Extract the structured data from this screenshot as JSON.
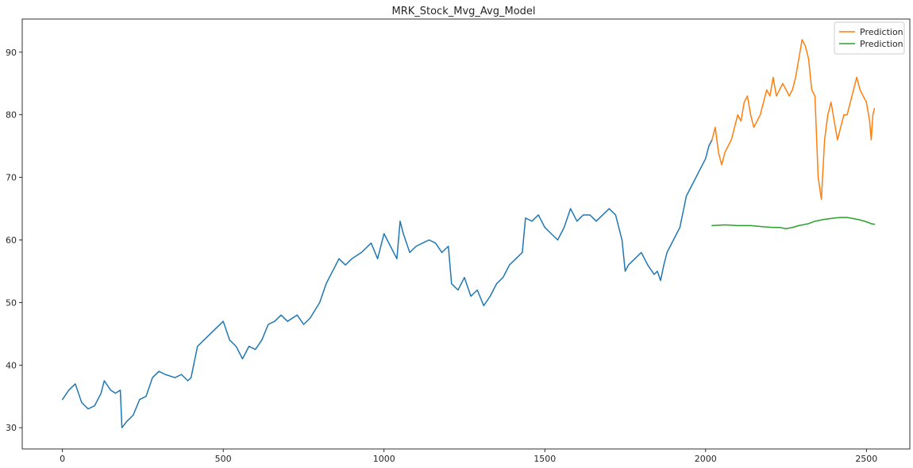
{
  "chart_data": {
    "type": "line",
    "title": "MRK_Stock_Mvg_Avg_Model",
    "xlabel": "",
    "ylabel": "",
    "xlim": [
      -125,
      2635
    ],
    "ylim": [
      26.6,
      95.3
    ],
    "x_ticks": [
      0,
      500,
      1000,
      1500,
      2000,
      2500
    ],
    "y_ticks": [
      30,
      40,
      50,
      60,
      70,
      80,
      90
    ],
    "grid": false,
    "legend_position": "top-right",
    "series": [
      {
        "color": "#1f77b4",
        "points": [
          [
            0,
            34.5
          ],
          [
            20,
            36
          ],
          [
            40,
            37
          ],
          [
            60,
            34
          ],
          [
            80,
            33
          ],
          [
            100,
            33.5
          ],
          [
            120,
            35.5
          ],
          [
            130,
            37.5
          ],
          [
            150,
            36
          ],
          [
            165,
            35.5
          ],
          [
            180,
            36
          ],
          [
            185,
            30
          ],
          [
            200,
            31
          ],
          [
            220,
            32
          ],
          [
            240,
            34.5
          ],
          [
            260,
            35
          ],
          [
            280,
            38
          ],
          [
            300,
            39
          ],
          [
            320,
            38.5
          ],
          [
            350,
            38
          ],
          [
            370,
            38.5
          ],
          [
            390,
            37.5
          ],
          [
            400,
            38
          ],
          [
            420,
            43
          ],
          [
            440,
            44
          ],
          [
            460,
            45
          ],
          [
            480,
            46
          ],
          [
            500,
            47
          ],
          [
            520,
            44
          ],
          [
            540,
            43
          ],
          [
            560,
            41
          ],
          [
            580,
            43
          ],
          [
            600,
            42.5
          ],
          [
            620,
            44
          ],
          [
            640,
            46.5
          ],
          [
            660,
            47
          ],
          [
            680,
            48
          ],
          [
            700,
            47
          ],
          [
            730,
            48
          ],
          [
            750,
            46.5
          ],
          [
            770,
            47.5
          ],
          [
            800,
            50
          ],
          [
            820,
            53
          ],
          [
            840,
            55
          ],
          [
            860,
            57
          ],
          [
            880,
            56
          ],
          [
            900,
            57
          ],
          [
            930,
            58
          ],
          [
            960,
            59.5
          ],
          [
            980,
            57
          ],
          [
            1000,
            61
          ],
          [
            1020,
            59
          ],
          [
            1040,
            57
          ],
          [
            1050,
            63
          ],
          [
            1060,
            61
          ],
          [
            1080,
            58
          ],
          [
            1100,
            59
          ],
          [
            1120,
            59.5
          ],
          [
            1140,
            60
          ],
          [
            1160,
            59.5
          ],
          [
            1180,
            58
          ],
          [
            1200,
            59
          ],
          [
            1210,
            53
          ],
          [
            1230,
            52
          ],
          [
            1250,
            54
          ],
          [
            1270,
            51
          ],
          [
            1290,
            52
          ],
          [
            1310,
            49.5
          ],
          [
            1330,
            51
          ],
          [
            1350,
            53
          ],
          [
            1370,
            54
          ],
          [
            1390,
            56
          ],
          [
            1410,
            57
          ],
          [
            1430,
            58
          ],
          [
            1440,
            63.5
          ],
          [
            1460,
            63
          ],
          [
            1480,
            64
          ],
          [
            1500,
            62
          ],
          [
            1520,
            61
          ],
          [
            1540,
            60
          ],
          [
            1560,
            62
          ],
          [
            1580,
            65
          ],
          [
            1600,
            63
          ],
          [
            1620,
            64
          ],
          [
            1640,
            64
          ],
          [
            1660,
            63
          ],
          [
            1680,
            64
          ],
          [
            1700,
            65
          ],
          [
            1720,
            64
          ],
          [
            1740,
            60
          ],
          [
            1750,
            55
          ],
          [
            1760,
            56
          ],
          [
            1780,
            57
          ],
          [
            1800,
            58
          ],
          [
            1820,
            56
          ],
          [
            1840,
            54.5
          ],
          [
            1850,
            55
          ],
          [
            1860,
            53.5
          ],
          [
            1870,
            56
          ],
          [
            1880,
            58
          ],
          [
            1900,
            60
          ],
          [
            1920,
            62
          ],
          [
            1940,
            67
          ],
          [
            1960,
            69
          ],
          [
            1980,
            71
          ],
          [
            2000,
            73
          ],
          [
            2010,
            75
          ],
          [
            2020,
            76
          ]
        ]
      },
      {
        "name": "Prediction",
        "color": "#ff7f0e",
        "points": [
          [
            2020,
            76
          ],
          [
            2030,
            78
          ],
          [
            2040,
            74
          ],
          [
            2050,
            72
          ],
          [
            2060,
            74
          ],
          [
            2070,
            75
          ],
          [
            2080,
            76
          ],
          [
            2090,
            78
          ],
          [
            2100,
            80
          ],
          [
            2110,
            79
          ],
          [
            2120,
            82
          ],
          [
            2130,
            83
          ],
          [
            2140,
            80
          ],
          [
            2150,
            78
          ],
          [
            2160,
            79
          ],
          [
            2170,
            80
          ],
          [
            2180,
            82
          ],
          [
            2190,
            84
          ],
          [
            2200,
            83
          ],
          [
            2210,
            86
          ],
          [
            2220,
            83
          ],
          [
            2230,
            84
          ],
          [
            2240,
            85
          ],
          [
            2250,
            84
          ],
          [
            2260,
            83
          ],
          [
            2270,
            84
          ],
          [
            2280,
            86
          ],
          [
            2290,
            89
          ],
          [
            2300,
            92
          ],
          [
            2310,
            91
          ],
          [
            2320,
            89
          ],
          [
            2330,
            84
          ],
          [
            2340,
            83
          ],
          [
            2350,
            70
          ],
          [
            2360,
            66.5
          ],
          [
            2370,
            76
          ],
          [
            2380,
            80
          ],
          [
            2390,
            82
          ],
          [
            2400,
            79
          ],
          [
            2410,
            76
          ],
          [
            2420,
            78
          ],
          [
            2430,
            80
          ],
          [
            2440,
            80
          ],
          [
            2450,
            82
          ],
          [
            2460,
            84
          ],
          [
            2470,
            86
          ],
          [
            2480,
            84
          ],
          [
            2490,
            83
          ],
          [
            2500,
            82
          ],
          [
            2510,
            79
          ],
          [
            2515,
            76
          ],
          [
            2520,
            80
          ],
          [
            2525,
            81
          ]
        ]
      },
      {
        "name": "Prediction",
        "color": "#2ca02c",
        "points": [
          [
            2020,
            62.3
          ],
          [
            2060,
            62.4
          ],
          [
            2100,
            62.3
          ],
          [
            2140,
            62.3
          ],
          [
            2180,
            62.1
          ],
          [
            2210,
            62
          ],
          [
            2230,
            62
          ],
          [
            2250,
            61.8
          ],
          [
            2270,
            62
          ],
          [
            2290,
            62.3
          ],
          [
            2320,
            62.6
          ],
          [
            2340,
            63
          ],
          [
            2370,
            63.3
          ],
          [
            2400,
            63.5
          ],
          [
            2420,
            63.6
          ],
          [
            2440,
            63.6
          ],
          [
            2460,
            63.4
          ],
          [
            2480,
            63.2
          ],
          [
            2500,
            62.9
          ],
          [
            2515,
            62.6
          ],
          [
            2525,
            62.5
          ]
        ]
      }
    ]
  }
}
